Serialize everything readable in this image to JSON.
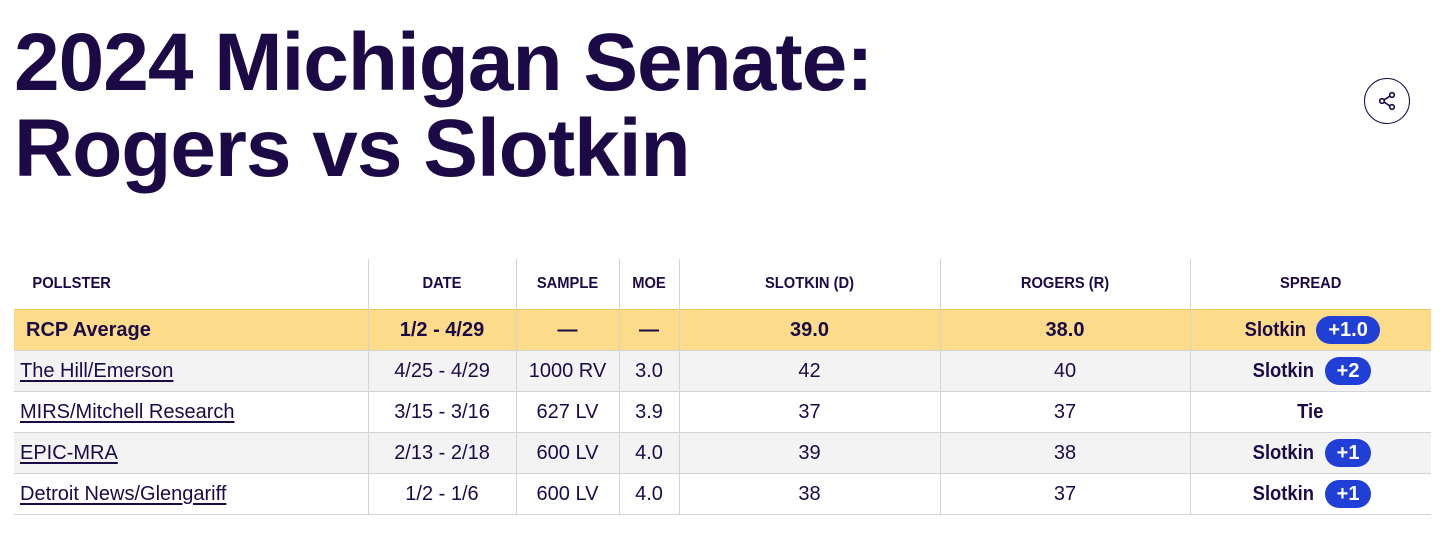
{
  "page": {
    "title_line1": "2024 Michigan Senate:",
    "title_line2": "Rogers vs Slotkin"
  },
  "share": {
    "icon": "share-icon"
  },
  "table": {
    "headers": [
      "POLLSTER",
      "DATE",
      "SAMPLE",
      "MOE",
      "SLOTKIN (D)",
      "ROGERS (R)",
      "SPREAD"
    ],
    "average": {
      "pollster": "RCP Average",
      "date": "1/2 - 4/29",
      "sample": "—",
      "moe": "—",
      "slotkin": "39.0",
      "rogers": "38.0",
      "spread_name": "Slotkin",
      "spread_value": "+1.0"
    },
    "rows": [
      {
        "pollster": "The Hill/Emerson",
        "date": "4/25 - 4/29",
        "sample": "1000 RV",
        "moe": "3.0",
        "slotkin": "42",
        "rogers": "40",
        "spread_name": "Slotkin",
        "spread_value": "+2"
      },
      {
        "pollster": "MIRS/Mitchell Research",
        "date": "3/15 - 3/16",
        "sample": "627 LV",
        "moe": "3.9",
        "slotkin": "37",
        "rogers": "37",
        "spread_name": "Tie",
        "spread_value": ""
      },
      {
        "pollster": "EPIC-MRA",
        "date": "2/13 - 2/18",
        "sample": "600 LV",
        "moe": "4.0",
        "slotkin": "39",
        "rogers": "38",
        "spread_name": "Slotkin",
        "spread_value": "+1"
      },
      {
        "pollster": "Detroit News/Glengariff",
        "date": "1/2 - 1/6",
        "sample": "600 LV",
        "moe": "4.0",
        "slotkin": "38",
        "rogers": "37",
        "spread_name": "Slotkin",
        "spread_value": "+1"
      }
    ]
  },
  "colors": {
    "title": "#1c0a47",
    "average_row": "#fcdc8a",
    "alt_row": "#f3f3f3",
    "spread_badge": "#1f3fd6"
  }
}
